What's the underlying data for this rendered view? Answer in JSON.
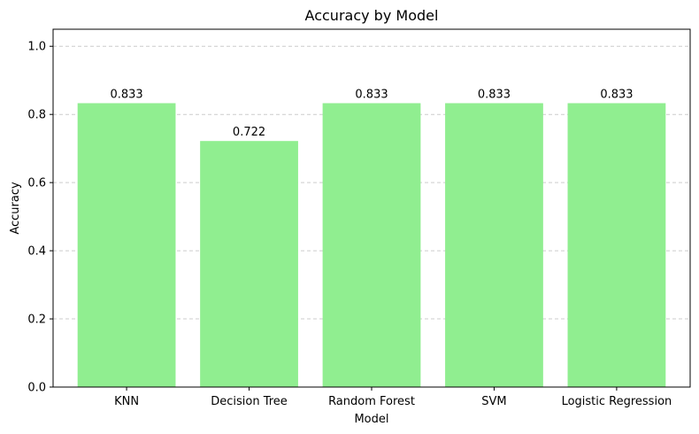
{
  "chart_data": {
    "type": "bar",
    "title": "Accuracy by Model",
    "xlabel": "Model",
    "ylabel": "Accuracy",
    "categories": [
      "KNN",
      "Decision Tree",
      "Random Forest",
      "SVM",
      "Logistic Regression"
    ],
    "values": [
      0.833,
      0.722,
      0.833,
      0.833,
      0.833
    ],
    "data_labels": [
      "0.833",
      "0.722",
      "0.833",
      "0.833",
      "0.833"
    ],
    "ylim": [
      0,
      1.05
    ],
    "yticks": [
      0.0,
      0.2,
      0.4,
      0.6,
      0.8,
      1.0
    ],
    "ytick_labels": [
      "0.0",
      "0.2",
      "0.4",
      "0.6",
      "0.8",
      "1.0"
    ],
    "grid": "y-dashed",
    "bar_color": "#90ee90",
    "grid_color": "#cccccc",
    "legend": "none"
  }
}
